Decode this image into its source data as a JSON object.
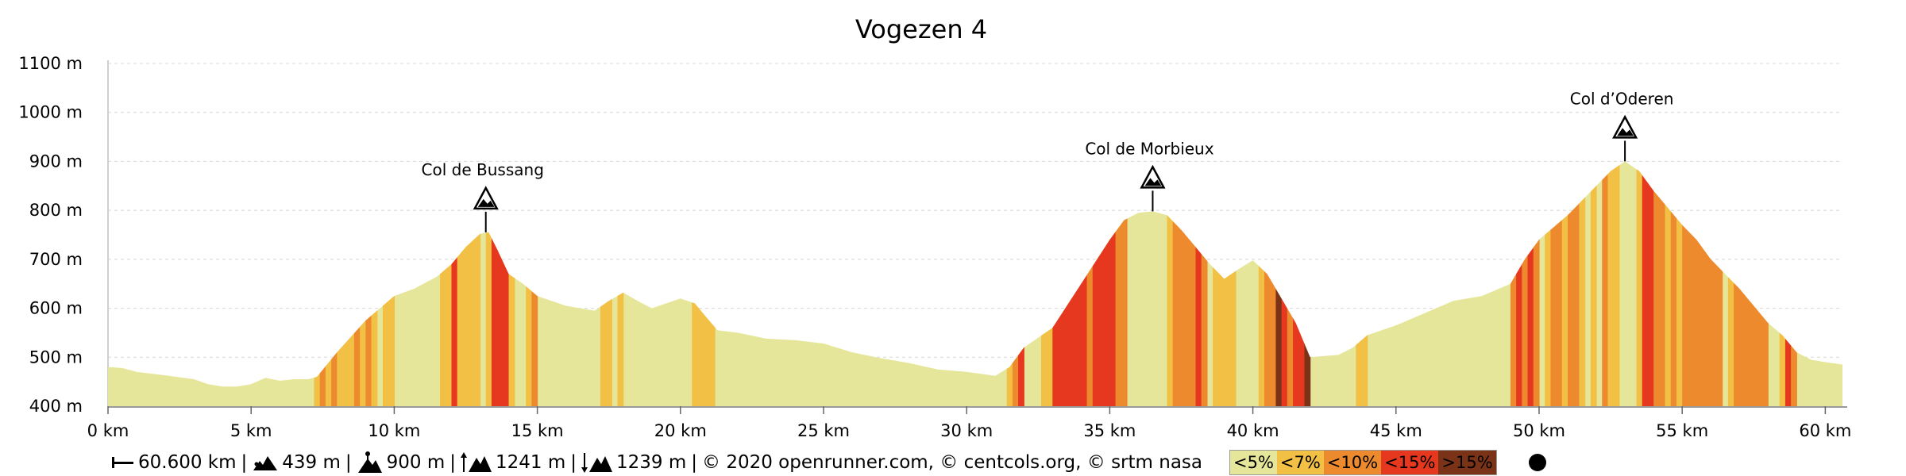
{
  "chart_data": {
    "type": "area",
    "title": "Vogezen 4",
    "xlabel": "",
    "ylabel": "",
    "xlim": [
      0,
      60.6
    ],
    "ylim": [
      400,
      1100
    ],
    "x_ticks": [
      "0 km",
      "5 km",
      "10 km",
      "15 km",
      "20 km",
      "25 km",
      "30 km",
      "35 km",
      "40 km",
      "45 km",
      "50 km",
      "55 km",
      "60 km"
    ],
    "y_ticks": [
      "400 m",
      "500 m",
      "600 m",
      "700 m",
      "800 m",
      "900 m",
      "1000 m",
      "1100 m"
    ],
    "grid": true,
    "profile": [
      [
        0,
        480
      ],
      [
        0.5,
        478
      ],
      [
        1,
        470
      ],
      [
        2,
        463
      ],
      [
        3,
        455
      ],
      [
        3.5,
        445
      ],
      [
        4,
        440
      ],
      [
        4.5,
        440
      ],
      [
        5,
        445
      ],
      [
        5.5,
        458
      ],
      [
        6,
        452
      ],
      [
        6.5,
        455
      ],
      [
        7,
        455
      ],
      [
        7.3,
        460
      ],
      [
        8,
        510
      ],
      [
        9,
        575
      ],
      [
        10,
        625
      ],
      [
        10.7,
        640
      ],
      [
        11.5,
        665
      ],
      [
        12,
        690
      ],
      [
        12.5,
        725
      ],
      [
        13,
        752
      ],
      [
        13.3,
        755
      ],
      [
        13.6,
        720
      ],
      [
        14,
        670
      ],
      [
        14.5,
        650
      ],
      [
        15,
        625
      ],
      [
        16,
        605
      ],
      [
        17,
        595
      ],
      [
        17.5,
        615
      ],
      [
        18,
        632
      ],
      [
        18.6,
        612
      ],
      [
        19,
        600
      ],
      [
        19.5,
        610
      ],
      [
        20,
        620
      ],
      [
        20.5,
        610
      ],
      [
        21,
        575
      ],
      [
        21.3,
        555
      ],
      [
        22,
        550
      ],
      [
        23,
        538
      ],
      [
        24,
        535
      ],
      [
        25,
        528
      ],
      [
        26,
        510
      ],
      [
        27,
        498
      ],
      [
        28,
        488
      ],
      [
        29,
        475
      ],
      [
        30,
        470
      ],
      [
        31,
        462
      ],
      [
        31.5,
        480
      ],
      [
        32,
        520
      ],
      [
        33,
        560
      ],
      [
        34,
        650
      ],
      [
        35,
        740
      ],
      [
        35.5,
        780
      ],
      [
        36,
        795
      ],
      [
        36.5,
        798
      ],
      [
        37,
        790
      ],
      [
        37.5,
        760
      ],
      [
        38,
        725
      ],
      [
        38.5,
        690
      ],
      [
        39,
        660
      ],
      [
        39.5,
        680
      ],
      [
        40,
        698
      ],
      [
        40.5,
        670
      ],
      [
        41,
        620
      ],
      [
        41.5,
        570
      ],
      [
        42,
        500
      ],
      [
        43,
        505
      ],
      [
        43.5,
        520
      ],
      [
        44,
        545
      ],
      [
        45,
        565
      ],
      [
        46,
        590
      ],
      [
        47,
        615
      ],
      [
        48,
        625
      ],
      [
        49,
        650
      ],
      [
        49.5,
        700
      ],
      [
        50,
        740
      ],
      [
        51,
        790
      ],
      [
        51.5,
        820
      ],
      [
        52,
        850
      ],
      [
        52.5,
        880
      ],
      [
        53,
        900
      ],
      [
        53.5,
        880
      ],
      [
        54,
        840
      ],
      [
        55,
        770
      ],
      [
        55.5,
        740
      ],
      [
        56,
        700
      ],
      [
        57,
        640
      ],
      [
        58,
        570
      ],
      [
        58.5,
        545
      ],
      [
        59,
        510
      ],
      [
        59.5,
        495
      ],
      [
        60,
        490
      ],
      [
        60.6,
        485
      ]
    ],
    "passes": [
      {
        "name": "Col de Bussang",
        "km": 13.2,
        "elevation": 755
      },
      {
        "name": "Col de Morbieux",
        "km": 36.5,
        "elevation": 798
      },
      {
        "name": "Col d’Oderen",
        "km": 53,
        "elevation": 900
      }
    ],
    "gradient_legend": [
      {
        "label": "<5%",
        "color": "#E6E69A"
      },
      {
        "label": "<7%",
        "color": "#F2C044"
      },
      {
        "label": "<10%",
        "color": "#EE8A2E"
      },
      {
        "label": "<15%",
        "color": "#E5381E"
      },
      {
        "label": ">15%",
        "color": "#7B3318"
      }
    ]
  },
  "footer": {
    "distance": "60.600 km",
    "min_elevation": "439 m",
    "max_elevation": "900 m",
    "ascent": "1241 m",
    "descent": "1239 m",
    "credits": "© 2020 openrunner.com, © centcols.org, © srtm nasa"
  }
}
